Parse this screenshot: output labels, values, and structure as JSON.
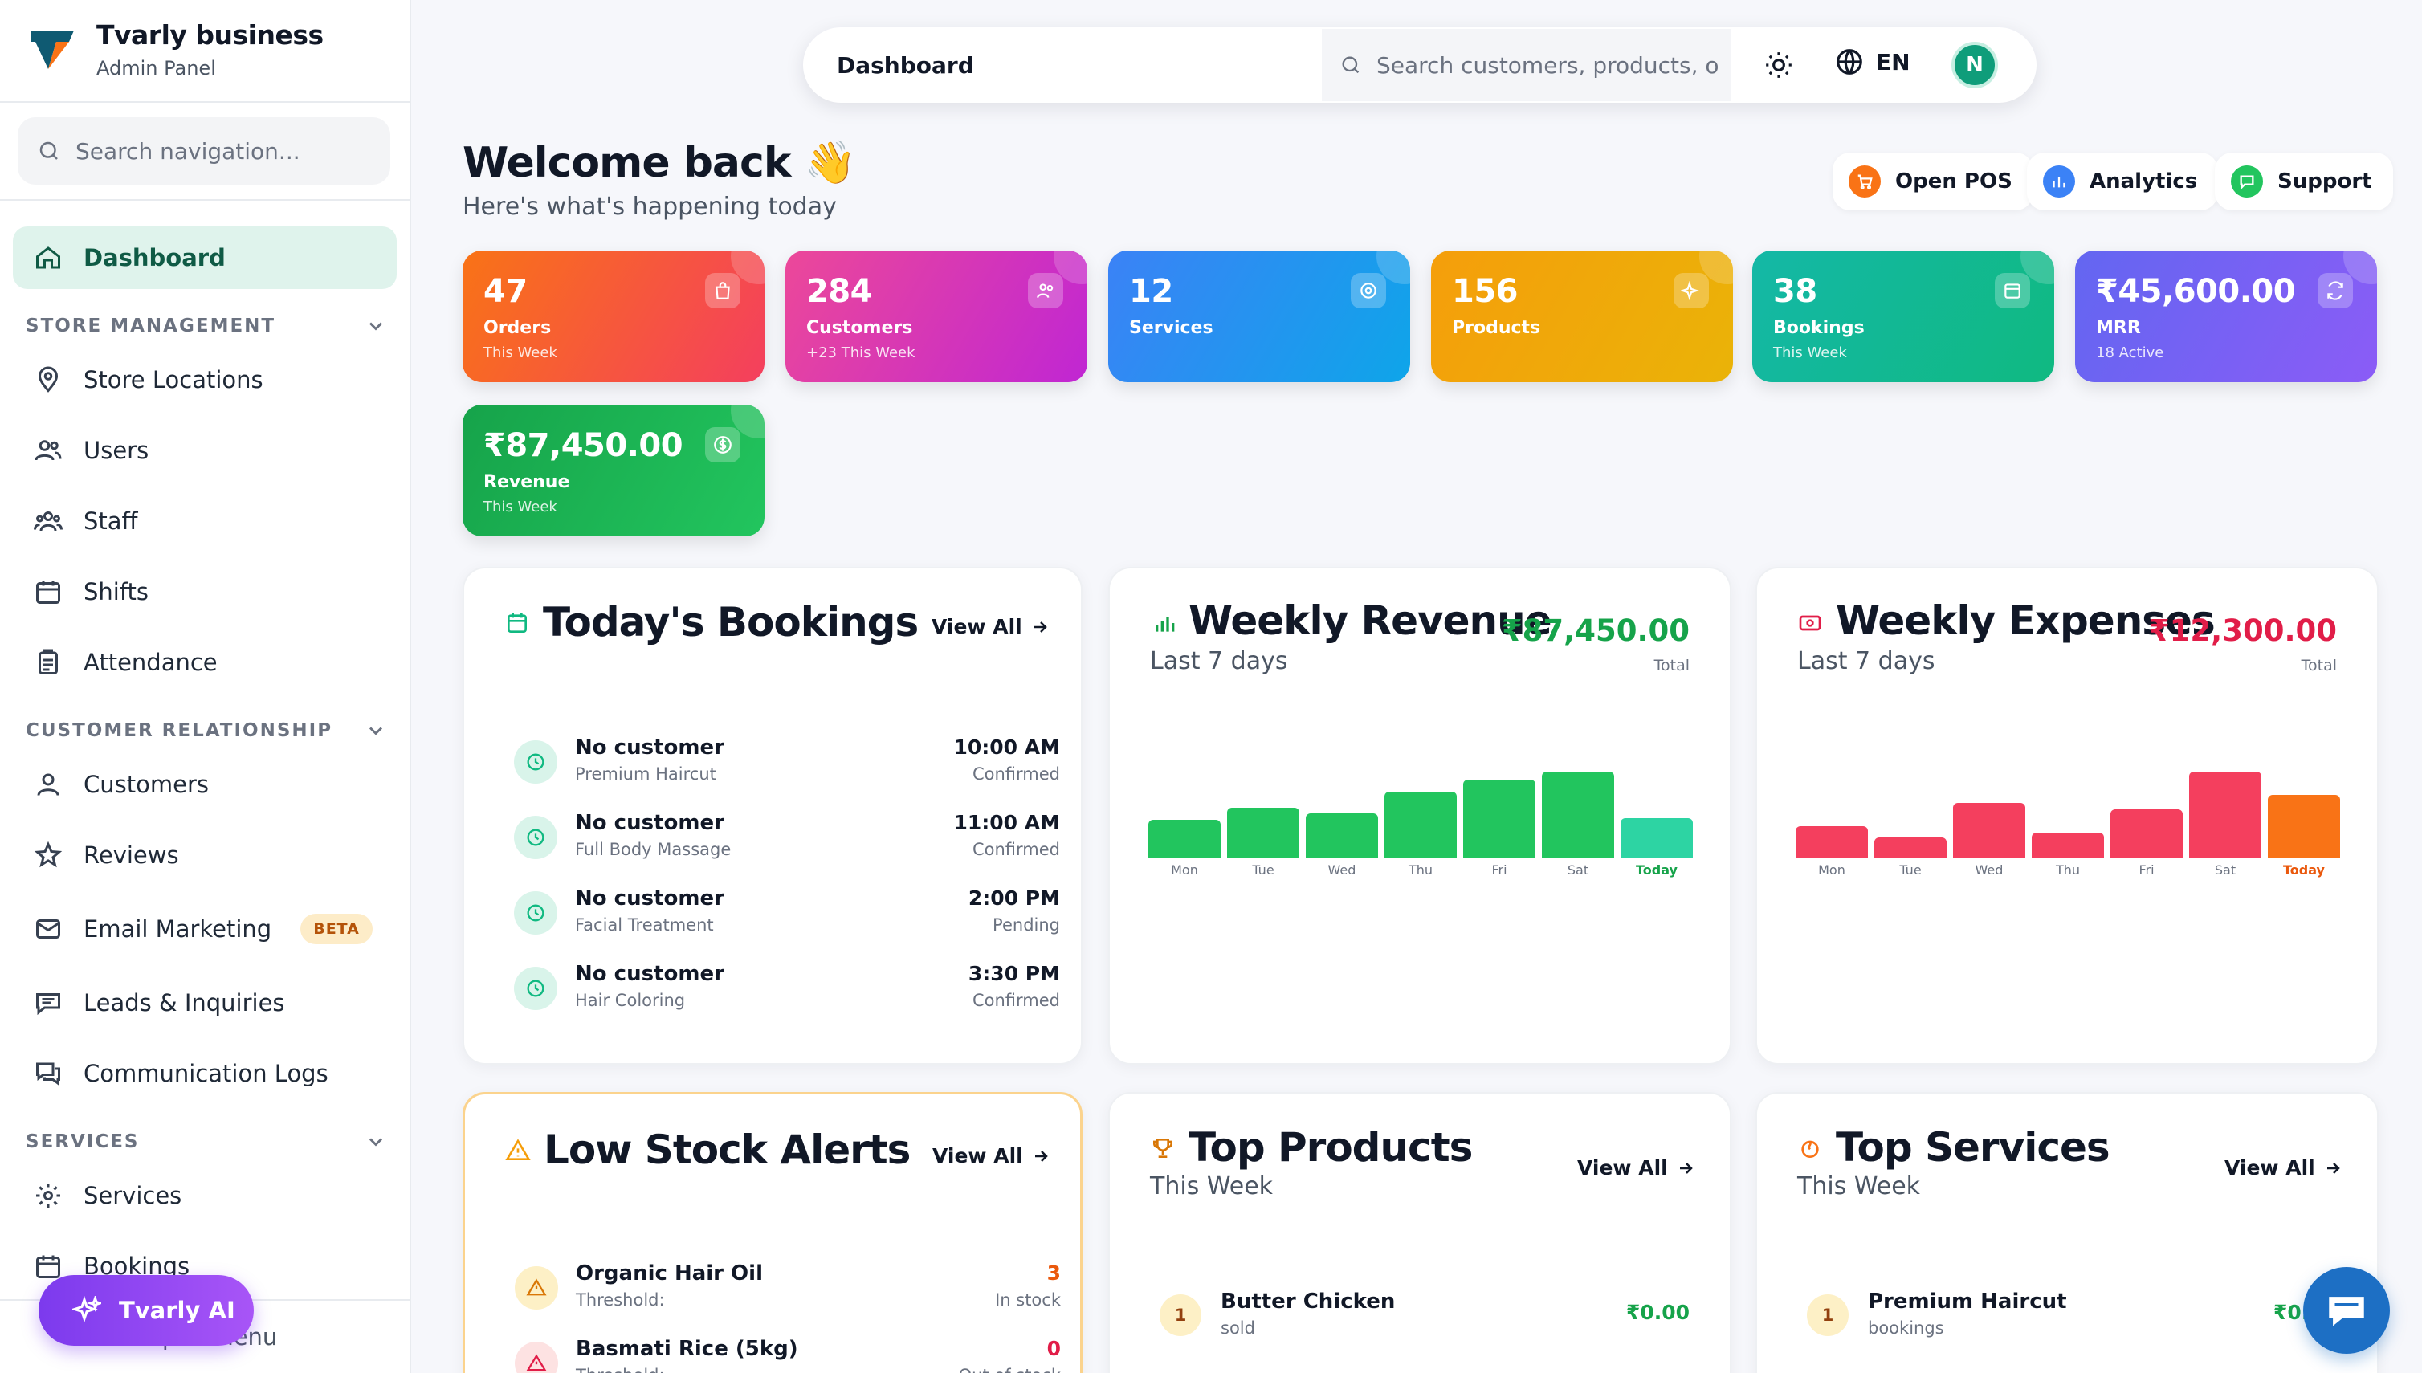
{
  "brand": {
    "title": "Tvarly business",
    "subtitle": "Admin Panel"
  },
  "sidebar": {
    "search_placeholder": "Search navigation...",
    "dashboard": "Dashboard",
    "store_management": {
      "header": "STORE MANAGEMENT",
      "items": [
        "Store Locations",
        "Users",
        "Staff",
        "Shifts",
        "Attendance"
      ]
    },
    "customer_relationship": {
      "header": "CUSTOMER RELATIONSHIP",
      "items": [
        "Customers",
        "Reviews",
        "Email Marketing",
        "Leads & Inquiries",
        "Communication Logs"
      ],
      "beta_badge": "BETA"
    },
    "services_section": {
      "header": "SERVICES",
      "items": [
        "Services",
        "Bookings"
      ]
    },
    "collapse_label": "Collapse menu",
    "ai_button": "Tvarly AI"
  },
  "topbar": {
    "breadcrumb": "Dashboard",
    "search_placeholder": "Search customers, products, o",
    "language": "EN",
    "avatar_initial": "N"
  },
  "welcome": {
    "title": "Welcome back 👋",
    "subtitle": "Here's what's happening today"
  },
  "quick_actions": [
    "Open POS",
    "Analytics",
    "Support"
  ],
  "stats": [
    {
      "value": "47",
      "label": "Orders",
      "sub": "This Week"
    },
    {
      "value": "284",
      "label": "Customers",
      "sub": "+23 This Week"
    },
    {
      "value": "12",
      "label": "Services",
      "sub": ""
    },
    {
      "value": "156",
      "label": "Products",
      "sub": ""
    },
    {
      "value": "38",
      "label": "Bookings",
      "sub": "This Week"
    },
    {
      "value": "₹45,600.00",
      "label": "MRR",
      "sub": "18 Active"
    },
    {
      "value": "₹87,450.00",
      "label": "Revenue",
      "sub": "This Week"
    }
  ],
  "bookings": {
    "title": "Today's Bookings",
    "view_all": "View All",
    "rows": [
      {
        "name": "No customer",
        "service": "Premium Haircut",
        "time": "10:00 AM",
        "status": "Confirmed"
      },
      {
        "name": "No customer",
        "service": "Full Body Massage",
        "time": "11:00 AM",
        "status": "Confirmed"
      },
      {
        "name": "No customer",
        "service": "Facial Treatment",
        "time": "2:00 PM",
        "status": "Pending"
      },
      {
        "name": "No customer",
        "service": "Hair Coloring",
        "time": "3:30 PM",
        "status": "Confirmed"
      }
    ]
  },
  "weekly_revenue": {
    "title": "Weekly Revenue",
    "subtitle": "Last 7 days",
    "total": "₹87,450.00",
    "total_label": "Total"
  },
  "weekly_expenses": {
    "title": "Weekly Expenses",
    "subtitle": "Last 7 days",
    "total": "₹12,300.00",
    "total_label": "Total"
  },
  "low_stock": {
    "title": "Low Stock Alerts",
    "view_all": "View All",
    "rows": [
      {
        "name": "Organic Hair Oil",
        "detail": "Threshold:",
        "count": "3",
        "status": "In stock"
      },
      {
        "name": "Basmati Rice (5kg)",
        "detail": "Threshold:",
        "count": "0",
        "status": "Out of stock"
      }
    ]
  },
  "top_products": {
    "title": "Top Products",
    "subtitle": "This Week",
    "view_all": "View All",
    "rows": [
      {
        "rank": "1",
        "name": "Butter Chicken",
        "detail": "sold",
        "amount": "₹0.00"
      }
    ]
  },
  "top_services": {
    "title": "Top Services",
    "subtitle": "This Week",
    "view_all": "View All",
    "rows": [
      {
        "rank": "1",
        "name": "Premium Haircut",
        "detail": "bookings",
        "amount": "₹0.00"
      }
    ]
  },
  "chart_data": [
    {
      "type": "bar",
      "title": "Weekly Revenue",
      "categories": [
        "Mon",
        "Tue",
        "Wed",
        "Thu",
        "Fri",
        "Sat",
        "Today"
      ],
      "values": [
        48,
        64,
        56,
        84,
        100,
        110,
        50
      ],
      "ylim": [
        0,
        115
      ],
      "colors": {
        "bar": "#22c55e",
        "highlight": "#2dd4a3",
        "today_label": "#16a34a"
      }
    },
    {
      "type": "bar",
      "title": "Weekly Expenses",
      "categories": [
        "Mon",
        "Tue",
        "Wed",
        "Thu",
        "Fri",
        "Sat",
        "Today"
      ],
      "values": [
        40,
        26,
        70,
        32,
        62,
        110,
        80
      ],
      "ylim": [
        0,
        115
      ],
      "colors": {
        "bar": "#f43f5e",
        "highlight": "#f97316",
        "today_label": "#ea580c"
      }
    }
  ],
  "colors": {
    "accent": "#0f9d7a",
    "orders": "#f43f5e",
    "customers": "#d946ef",
    "services": "#3b82f6",
    "products": "#f59e0b",
    "bookings": "#14b8a6",
    "mrr": "#6366f1",
    "revenue": "#10b981"
  }
}
